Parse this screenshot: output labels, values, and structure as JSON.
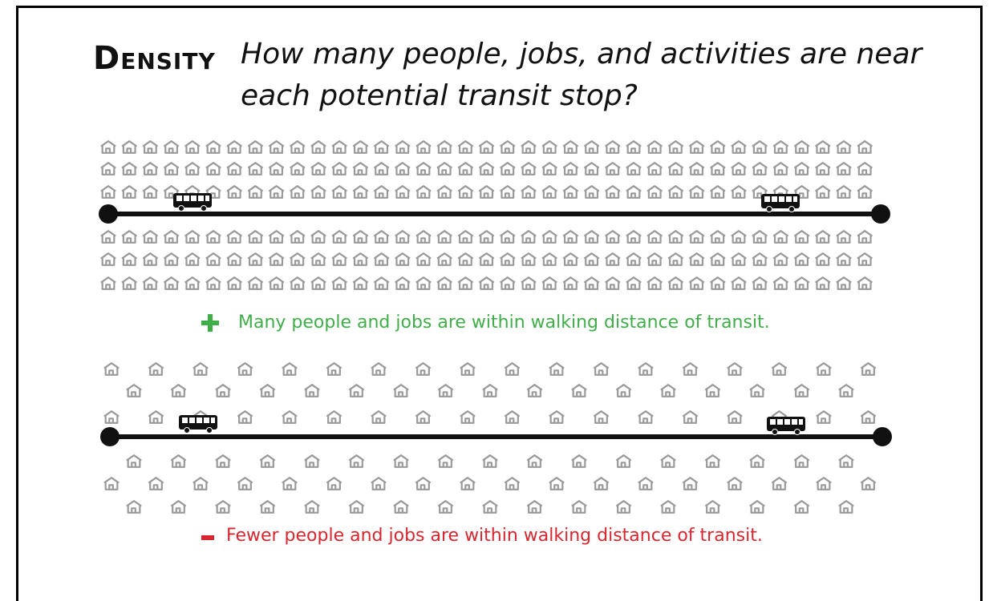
{
  "title": "Density",
  "question": "How many people, jobs, and activities are near each potential transit stop?",
  "high_density": {
    "caption": "Many people and jobs are within walking distance of transit."
  },
  "low_density": {
    "caption": "Fewer people and jobs are within walking distance of transit."
  }
}
